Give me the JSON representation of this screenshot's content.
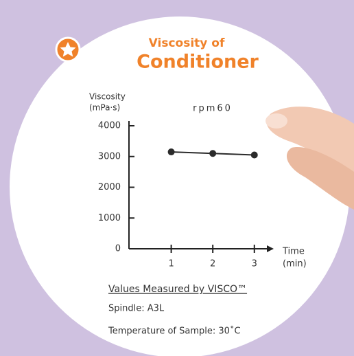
{
  "chart_data": {
    "type": "line",
    "title_lines": [
      "Viscosity of",
      "Conditioner"
    ],
    "subtitle": "rpm60",
    "ylabel": [
      "Viscosity",
      "(mPa·s)"
    ],
    "xlabel": [
      "Time",
      "(min)"
    ],
    "x": [
      1,
      2,
      3
    ],
    "series": [
      {
        "name": "rpm60",
        "color": "#2b2b2b",
        "values": [
          3150,
          3100,
          3050
        ]
      }
    ],
    "xlim": [
      0,
      3.4
    ],
    "xticks": [
      1,
      2,
      3
    ],
    "ylim": [
      0,
      4000
    ],
    "yticks": [
      0,
      1000,
      2000,
      3000,
      4000
    ],
    "notes": {
      "heading": "Values Measured by VISCO™",
      "lines": [
        "Spindle: A3L",
        "Temperature of Sample: 30˚C"
      ]
    }
  }
}
